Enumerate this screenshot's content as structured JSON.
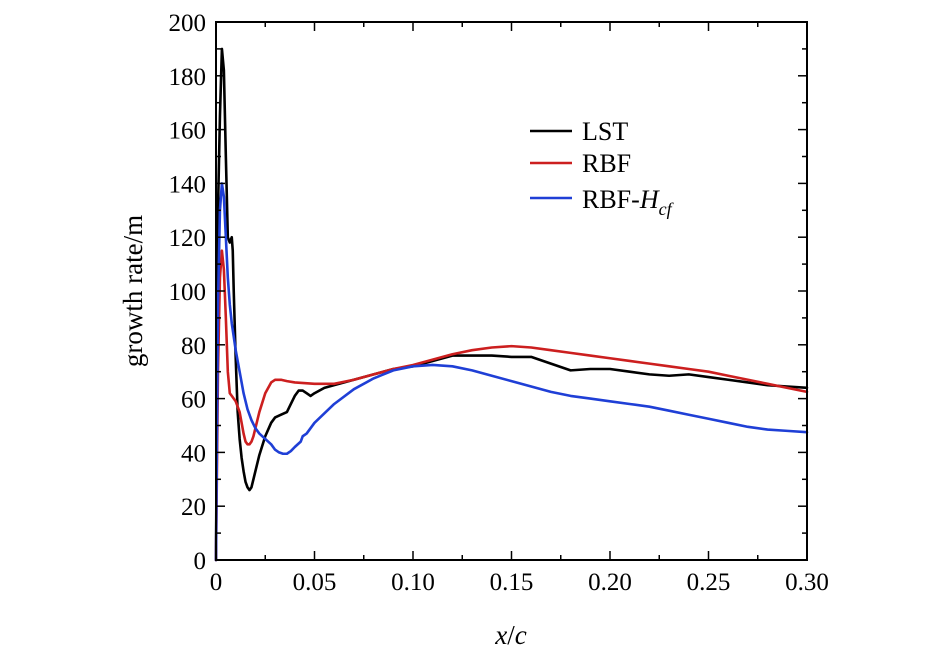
{
  "chart_data": {
    "type": "line",
    "xlabel": "x/c",
    "xlabel_parts": {
      "x": "x",
      "slash": "/",
      "c": "c"
    },
    "ylabel": "growth rate/m",
    "xlim": [
      0,
      0.3
    ],
    "ylim": [
      0,
      200
    ],
    "x_ticks": [
      0,
      0.05,
      0.1,
      0.15,
      0.2,
      0.25,
      0.3
    ],
    "x_tick_labels": [
      "0",
      "0.05",
      "0.10",
      "0.15",
      "0.20",
      "0.25",
      "0.30"
    ],
    "y_ticks": [
      0,
      20,
      40,
      60,
      80,
      100,
      120,
      140,
      160,
      180,
      200
    ],
    "y_tick_labels": [
      "0",
      "20",
      "40",
      "60",
      "80",
      "100",
      "120",
      "140",
      "160",
      "180",
      "200"
    ],
    "grid": false,
    "legend_position": "top-right",
    "series": [
      {
        "name": "LST",
        "color": "#000000",
        "x": [
          0,
          0.001,
          0.002,
          0.003,
          0.004,
          0.005,
          0.006,
          0.007,
          0.008,
          0.0085,
          0.009,
          0.01,
          0.011,
          0.012,
          0.013,
          0.014,
          0.015,
          0.016,
          0.017,
          0.018,
          0.02,
          0.022,
          0.025,
          0.028,
          0.03,
          0.033,
          0.036,
          0.038,
          0.04,
          0.042,
          0.044,
          0.046,
          0.048,
          0.05,
          0.055,
          0.06,
          0.07,
          0.08,
          0.09,
          0.1,
          0.11,
          0.12,
          0.13,
          0.14,
          0.15,
          0.16,
          0.17,
          0.18,
          0.19,
          0.2,
          0.21,
          0.22,
          0.23,
          0.24,
          0.25,
          0.26,
          0.27,
          0.28,
          0.29,
          0.3
        ],
        "y": [
          0,
          130,
          165,
          190,
          182,
          150,
          120,
          118,
          120,
          115,
          100,
          75,
          55,
          45,
          38,
          33,
          29,
          27,
          26,
          27,
          33,
          39,
          46,
          51,
          53,
          54,
          55,
          58,
          61,
          63,
          63,
          62,
          61,
          62,
          64,
          65,
          67,
          69,
          71,
          72,
          74,
          76,
          76,
          76,
          75.5,
          75.5,
          73,
          70.5,
          71,
          71,
          70,
          69,
          68.5,
          69,
          68,
          67,
          66,
          65,
          64.5,
          64
        ]
      },
      {
        "name": "RBF",
        "color": "#cc1f1f",
        "x": [
          0,
          0.001,
          0.002,
          0.003,
          0.004,
          0.005,
          0.006,
          0.007,
          0.008,
          0.009,
          0.01,
          0.011,
          0.012,
          0.013,
          0.014,
          0.015,
          0.016,
          0.017,
          0.018,
          0.019,
          0.02,
          0.022,
          0.025,
          0.028,
          0.03,
          0.033,
          0.036,
          0.04,
          0.05,
          0.06,
          0.07,
          0.08,
          0.09,
          0.1,
          0.11,
          0.12,
          0.13,
          0.14,
          0.15,
          0.16,
          0.17,
          0.18,
          0.19,
          0.2,
          0.21,
          0.22,
          0.23,
          0.24,
          0.25,
          0.26,
          0.27,
          0.28,
          0.29,
          0.3
        ],
        "y": [
          0,
          70,
          105,
          115,
          108,
          90,
          70,
          62,
          61,
          60,
          59,
          57,
          55,
          51,
          47,
          44,
          43,
          43,
          44,
          46,
          49,
          55,
          62,
          66,
          67,
          67,
          66.5,
          66,
          65.5,
          65.5,
          67,
          69,
          71,
          72.5,
          74.5,
          76.5,
          78,
          79,
          79.5,
          79,
          78,
          77,
          76,
          75,
          74,
          73,
          72,
          71,
          70,
          68.5,
          67,
          65.5,
          64,
          62.5
        ]
      },
      {
        "name": "RBF-Hcf",
        "name_parts": {
          "base": "RBF-",
          "italic": "H",
          "sub": "cf"
        },
        "color": "#1f3fd6",
        "x": [
          0,
          0.001,
          0.002,
          0.003,
          0.004,
          0.005,
          0.006,
          0.007,
          0.008,
          0.009,
          0.01,
          0.012,
          0.014,
          0.016,
          0.018,
          0.02,
          0.022,
          0.025,
          0.028,
          0.03,
          0.032,
          0.034,
          0.036,
          0.038,
          0.04,
          0.043,
          0.044,
          0.046,
          0.05,
          0.06,
          0.07,
          0.08,
          0.09,
          0.1,
          0.11,
          0.12,
          0.13,
          0.14,
          0.15,
          0.16,
          0.17,
          0.18,
          0.19,
          0.2,
          0.21,
          0.22,
          0.23,
          0.24,
          0.25,
          0.26,
          0.27,
          0.28,
          0.29,
          0.3
        ],
        "y": [
          0,
          95,
          130,
          140,
          135,
          120,
          105,
          95,
          88,
          83,
          78,
          70,
          62,
          56,
          52,
          49,
          47,
          45,
          43,
          41,
          40,
          39.5,
          39.5,
          40.5,
          42,
          44,
          46,
          47,
          51,
          58,
          63.5,
          67.5,
          70.5,
          72,
          72.5,
          72,
          70.5,
          68.5,
          66.5,
          64.5,
          62.5,
          61,
          60,
          59,
          58,
          57,
          55.5,
          54,
          52.5,
          51,
          49.5,
          48.5,
          48,
          47.5
        ]
      }
    ]
  }
}
